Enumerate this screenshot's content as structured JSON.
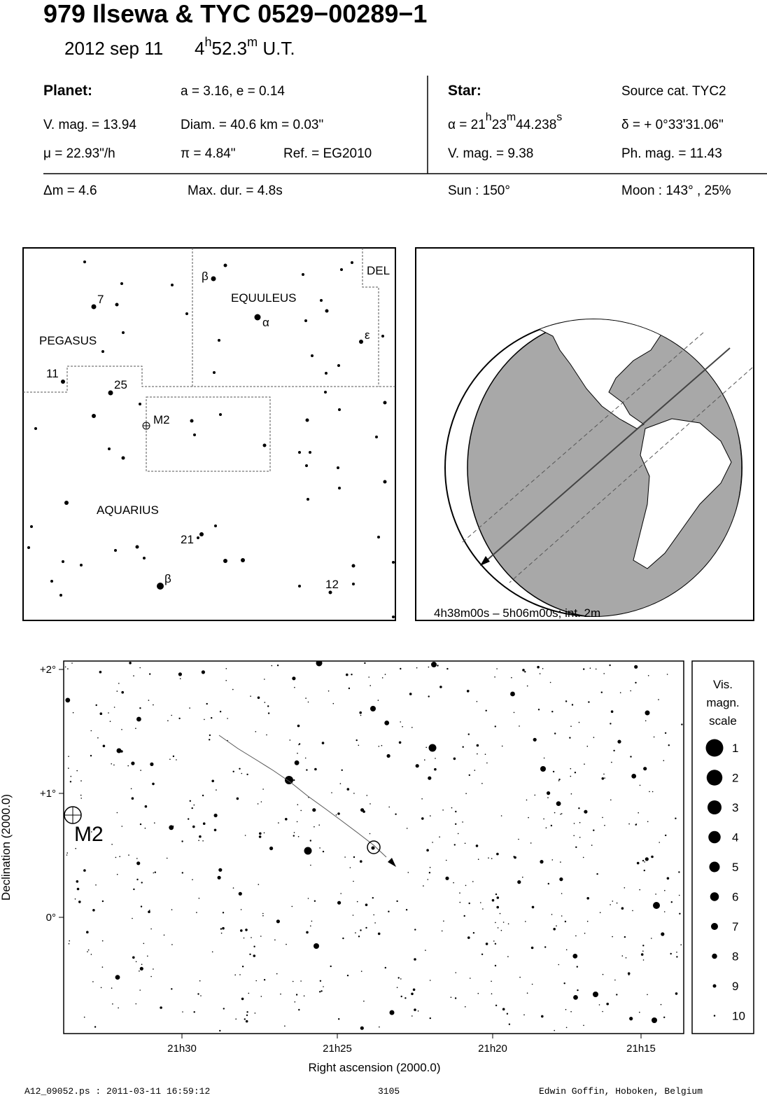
{
  "header": {
    "title": "979 Ilsewa  &  TYC 0529−00289−1",
    "date": "2012 sep 11",
    "time": [
      "4",
      "h",
      "52.3",
      "m",
      " U.T."
    ]
  },
  "info": {
    "planet_label": "Planet:",
    "orbit": "a = 3.16, e = 0.14",
    "star_label": "Star:",
    "source": "Source cat.  TYC2",
    "planet_vmag": "V. mag. = 13.94",
    "diameter": "Diam. = 40.6 km = 0.03\"",
    "alpha": [
      "α = 21",
      "h",
      "23",
      "m",
      "44.238",
      "s"
    ],
    "delta": "δ = + 0°33'31.06\"",
    "motion": "μ =  22.93\"/h",
    "parallax": "π =  4.84\"",
    "ref": "Ref. = EG2010",
    "star_vmag": "V. mag. =  9.38",
    "star_phmag": "Ph. mag. = 11.43",
    "delta_m": "Δm = 4.6",
    "max_dur": "Max. dur. = 4.8s",
    "sun": "Sun : 150°",
    "moon": "Moon : 143° , 25%"
  },
  "finder": {
    "constellations": [
      "PEGASUS",
      "EQUULEUS",
      "AQUARIUS",
      "DEL"
    ],
    "cluster": "M2",
    "star_labels": [
      "7",
      "11",
      "25",
      "21",
      "12",
      "β",
      "α",
      "ε",
      "β"
    ]
  },
  "globe": {
    "caption": "4h38m00s –  5h06m00s; int.  2m"
  },
  "chart": {
    "yticks": [
      "+2°",
      "+1°",
      "0°"
    ],
    "xticks": [
      "21h30",
      "21h25",
      "21h20",
      "21h15"
    ],
    "xlabel": "Right ascension (2000.0)",
    "ylabel": "Declination (2000.0)",
    "cluster": "M2",
    "legend_title": [
      "Vis.",
      "magn.",
      "scale"
    ],
    "legend_values": [
      1,
      2,
      3,
      4,
      5,
      6,
      7,
      8,
      9,
      10
    ]
  },
  "footer": {
    "file": "A12_09052.ps : 2011-03-11 16:59:12",
    "number": "3105",
    "author": "Edwin Goffin, Hoboken, Belgium"
  }
}
